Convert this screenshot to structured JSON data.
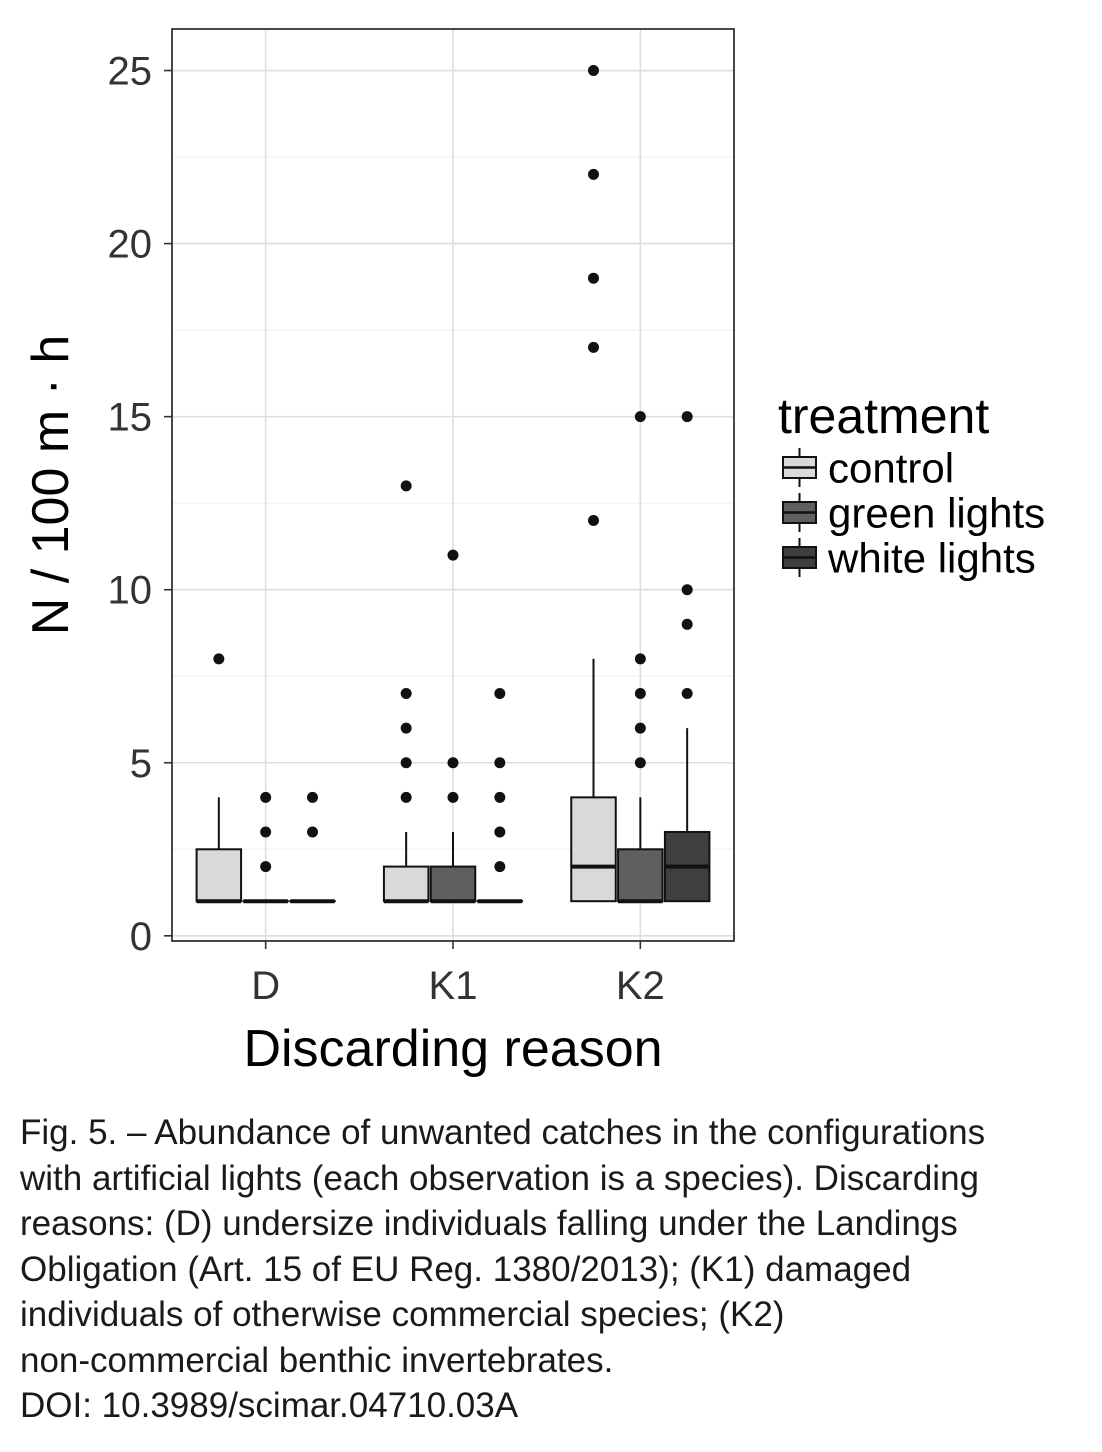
{
  "chart_data": {
    "type": "boxplot",
    "xlabel": "Discarding reason",
    "ylabel": "N / 100 m · h",
    "categories": [
      "D",
      "K1",
      "K2"
    ],
    "ylim": [
      -0.15,
      26.2
    ],
    "yticks": [
      0,
      5,
      10,
      15,
      20,
      25
    ],
    "grid": true,
    "legend": {
      "title": "treatment",
      "placement": "right"
    },
    "series": [
      {
        "name": "control",
        "color": "#d9d9d9",
        "boxes": [
          {
            "category": "D",
            "whisker_low": 1,
            "q1": 1,
            "median": 1,
            "q3": 2.5,
            "whisker_high": 4,
            "outliers": [
              8
            ]
          },
          {
            "category": "K1",
            "whisker_low": 1,
            "q1": 1,
            "median": 1,
            "q3": 2,
            "whisker_high": 3,
            "outliers": [
              4,
              5,
              6,
              7,
              13
            ]
          },
          {
            "category": "K2",
            "whisker_low": 1,
            "q1": 1,
            "median": 2,
            "q3": 4,
            "whisker_high": 8,
            "outliers": [
              12,
              17,
              19,
              22,
              25
            ]
          }
        ]
      },
      {
        "name": "green lights",
        "color": "#5f5f5f",
        "boxes": [
          {
            "category": "D",
            "whisker_low": 1,
            "q1": 1,
            "median": 1,
            "q3": 1,
            "whisker_high": 1,
            "outliers": [
              2,
              3,
              4
            ]
          },
          {
            "category": "K1",
            "whisker_low": 1,
            "q1": 1,
            "median": 1,
            "q3": 2,
            "whisker_high": 3,
            "outliers": [
              4,
              5,
              11
            ]
          },
          {
            "category": "K2",
            "whisker_low": 1,
            "q1": 1,
            "median": 1,
            "q3": 2.5,
            "whisker_high": 4,
            "outliers": [
              5,
              6,
              7,
              8,
              15
            ]
          }
        ]
      },
      {
        "name": "white lights",
        "color": "#3f3f3f",
        "boxes": [
          {
            "category": "D",
            "whisker_low": 1,
            "q1": 1,
            "median": 1,
            "q3": 1,
            "whisker_high": 1,
            "outliers": [
              3,
              4
            ]
          },
          {
            "category": "K1",
            "whisker_low": 1,
            "q1": 1,
            "median": 1,
            "q3": 1,
            "whisker_high": 1,
            "outliers": [
              2,
              3,
              4,
              5,
              7
            ]
          },
          {
            "category": "K2",
            "whisker_low": 1,
            "q1": 1,
            "median": 2,
            "q3": 3,
            "whisker_high": 6,
            "outliers": [
              7,
              9,
              10,
              15
            ]
          }
        ]
      }
    ]
  },
  "caption": {
    "lines": [
      "Fig. 5. – Abundance of unwanted catches in the configurations",
      "with artificial lights (each observation is a species). Discarding",
      "reasons: (D) undersize individuals falling under the Landings",
      "Obligation (Art. 15 of EU Reg. 1380/2013); (K1) damaged",
      "individuals of otherwise commercial species; (K2)",
      "non-commercial benthic invertebrates.",
      "DOI: 10.3989/scimar.04710.03A"
    ]
  }
}
